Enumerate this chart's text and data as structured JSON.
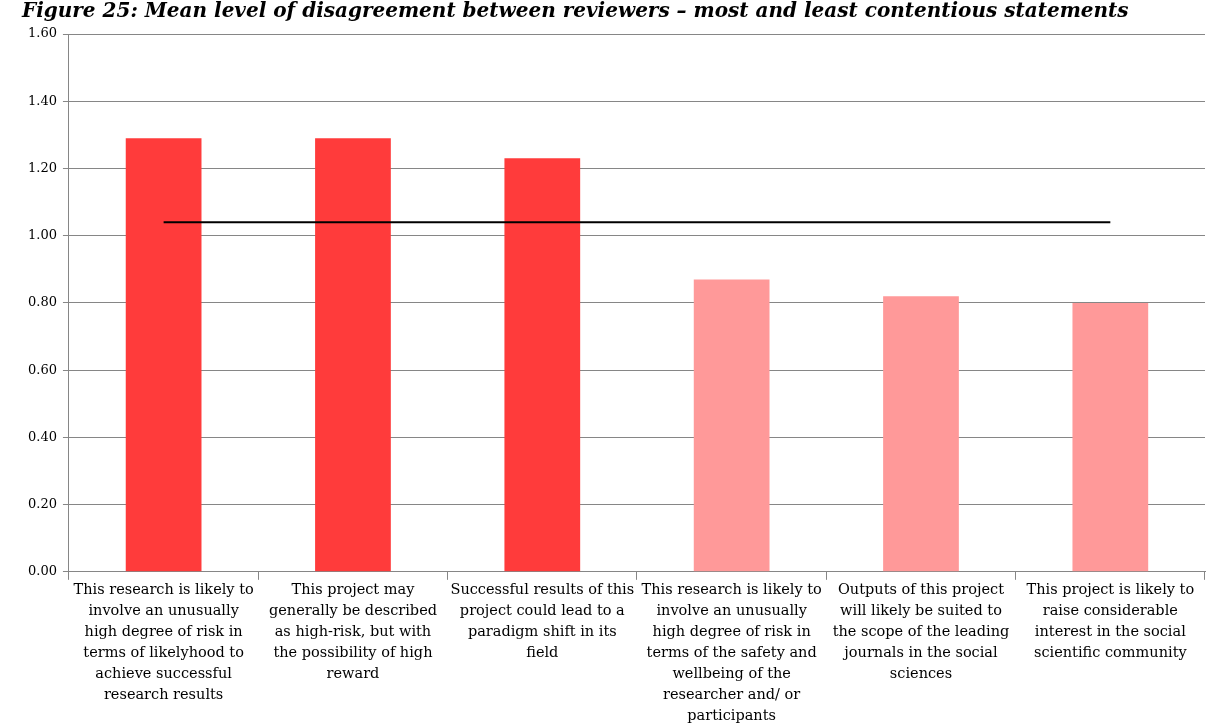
{
  "chart_data": {
    "type": "bar",
    "title": "Figure 25: Mean level of disagreement between reviewers – most and least contentious statements",
    "categories": [
      "This research is likely to involve an unusually high degree of risk in terms of likelyhood to achieve successful research results",
      "This project may generally be described as high-risk, but with the possibility of high reward",
      "Successful results of this project could lead to a paradigm shift in its field",
      "This research is likely to involve an unusually high degree of risk in terms of the safety and wellbeing of the researcher and/ or participants",
      "Outputs of this project will likely be suited to the scope of the leading journals in the social sciences",
      "This project is likely to raise considerable interest in the social scientific community"
    ],
    "series": [
      {
        "colors": [
          "#ff3b3b",
          "#ff3b3b",
          "#ff3b3b",
          "#ff9999",
          "#ff9999",
          "#ff9999"
        ],
        "values": [
          1.29,
          1.29,
          1.23,
          0.87,
          0.82,
          0.8
        ]
      },
      {
        "type": "line",
        "color": "#000000",
        "marker": "none",
        "line_style": "solid",
        "values": [
          1.04,
          1.04,
          1.04,
          1.04,
          1.04,
          1.04
        ]
      }
    ],
    "ylim": [
      0,
      1.6
    ],
    "yticks": [
      {
        "value": 0,
        "label": "0.00"
      },
      {
        "value": 0.2,
        "label": "0.20"
      },
      {
        "value": 0.4,
        "label": "0.40"
      },
      {
        "value": 0.6,
        "label": "0.60"
      },
      {
        "value": 0.8,
        "label": "0.80"
      },
      {
        "value": 1,
        "label": "1.00"
      },
      {
        "value": 1.2,
        "label": "1.20"
      },
      {
        "value": 1.4,
        "label": "1.40"
      },
      {
        "value": 1.6,
        "label": "1.60"
      }
    ],
    "grid": "y",
    "legend": false
  }
}
